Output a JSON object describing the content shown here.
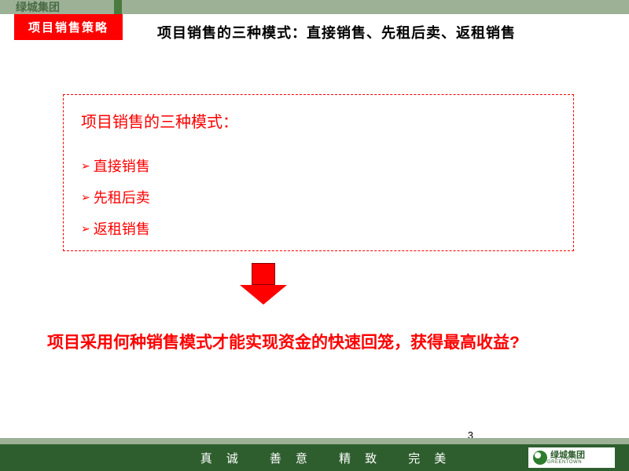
{
  "header": {
    "brand": "绿城集团",
    "tag_label": "项目销售策略",
    "heading": "项目销售的三种模式：直接销售、先租后卖、返租销售"
  },
  "box": {
    "title": "项目销售的三种模式：",
    "bullet_marker": "➢",
    "items": [
      "直接销售",
      "先租后卖",
      "返租销售"
    ]
  },
  "conclusion": "项目采用何种销售模式才能实现资金的快速回笼，获得最高收益?",
  "footer": {
    "words": "真诚 善意 精致 完美",
    "logo_text": "绿城集团",
    "logo_sub": "GREENTOWN"
  },
  "page_number": "3",
  "colors": {
    "red": "#ff0000",
    "dark_green": "#2e5e2e",
    "light_green": "#9cb196",
    "accent_green": "#4a7a3e"
  }
}
